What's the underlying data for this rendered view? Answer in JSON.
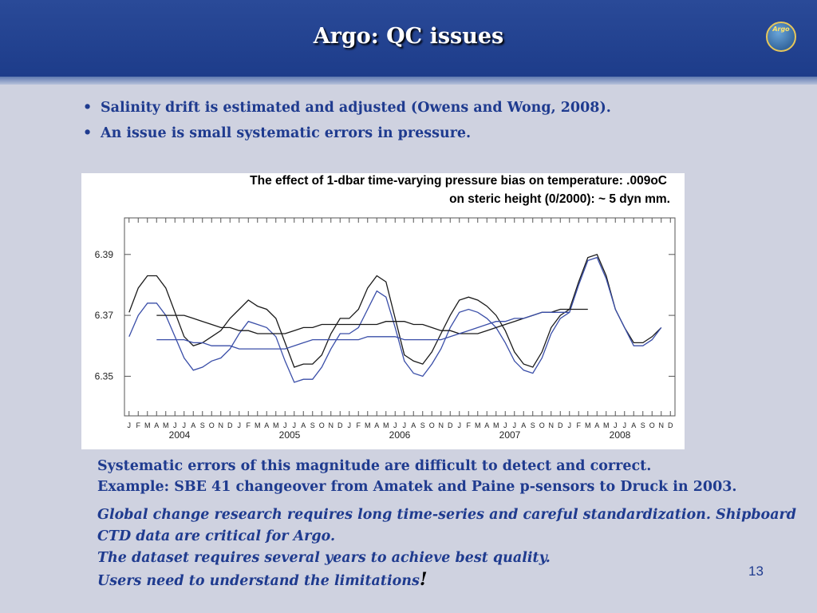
{
  "slide": {
    "title": "Argo: QC issues",
    "logo_text": "Argo",
    "bullets": [
      "Salinity drift is estimated and adjusted (Owens and Wong, 2008).",
      "An issue is small systematic errors in pressure."
    ],
    "body_lines": [
      "Systematic errors of this magnitude are difficult to detect and correct.",
      "Example: SBE 41 changeover from Amatek and Paine p-sensors to Druck in 2003."
    ],
    "italic_lines": [
      "Global change research requires long time-series and careful standardization. Shipboard",
      "CTD data are critical for Argo.",
      "The dataset requires several years to achieve best quality.",
      "Users need to understand the limitations"
    ],
    "exclamation": "!",
    "page_number": "13"
  },
  "chart_data": {
    "type": "line",
    "title_lines": [
      "The effect of 1-dbar time-varying pressure bias on temperature: .009oC",
      "on steric height (0/2000): ~ 5 dyn mm."
    ],
    "xlabel": "",
    "ylabel": "",
    "ylim": [
      6.337,
      6.402
    ],
    "yticks": [
      6.35,
      6.37,
      6.39
    ],
    "ytick_labels": [
      "6.35",
      "6.37",
      "6.39"
    ],
    "month_labels": [
      "J",
      "F",
      "M",
      "A",
      "M",
      "J",
      "J",
      "A",
      "S",
      "O",
      "N",
      "D"
    ],
    "years": [
      "2004",
      "2005",
      "2006",
      "2007",
      "2008"
    ],
    "x_range": [
      0,
      60
    ],
    "colors": {
      "black": "#1a1a1a",
      "blue": "#3a4ea8"
    },
    "series": [
      {
        "color": "black",
        "values": [
          6.371,
          6.379,
          6.383,
          6.383,
          6.379,
          6.371,
          6.363,
          6.36,
          6.361,
          6.363,
          6.365,
          6.369,
          6.372,
          6.375,
          6.373,
          6.372,
          6.369,
          6.361,
          6.353,
          6.354,
          6.354,
          6.357,
          6.364,
          6.369,
          6.369,
          6.372,
          6.379,
          6.383,
          6.381,
          6.369,
          6.357,
          6.355,
          6.354,
          6.358,
          6.364,
          6.37,
          6.375,
          6.376,
          6.375,
          6.373,
          6.37,
          6.365,
          6.358,
          6.354,
          6.353,
          6.358,
          6.366,
          6.37,
          6.372,
          6.381,
          6.389,
          6.39,
          6.383,
          6.372,
          6.366,
          6.361,
          6.361,
          6.363,
          6.366
        ]
      },
      {
        "color": "blue",
        "values": [
          6.363,
          6.37,
          6.374,
          6.374,
          6.37,
          6.363,
          6.356,
          6.352,
          6.353,
          6.355,
          6.356,
          6.359,
          6.364,
          6.368,
          6.367,
          6.366,
          6.363,
          6.355,
          6.348,
          6.349,
          6.349,
          6.353,
          6.359,
          6.364,
          6.364,
          6.366,
          6.372,
          6.378,
          6.376,
          6.366,
          6.355,
          6.351,
          6.35,
          6.354,
          6.359,
          6.366,
          6.371,
          6.372,
          6.371,
          6.369,
          6.366,
          6.361,
          6.355,
          6.352,
          6.351,
          6.356,
          6.364,
          6.369,
          6.371,
          6.38,
          6.388,
          6.389,
          6.382,
          6.372,
          6.366,
          6.36,
          6.36,
          6.362,
          6.366
        ]
      },
      {
        "color": "black",
        "values": [
          6.37,
          6.37,
          6.37,
          6.37,
          6.369,
          6.368,
          6.367,
          6.366,
          6.366,
          6.365,
          6.365,
          6.364,
          6.364,
          6.364,
          6.364,
          6.365,
          6.366,
          6.366,
          6.367,
          6.367,
          6.367,
          6.367,
          6.367,
          6.367,
          6.367,
          6.368,
          6.368,
          6.368,
          6.367,
          6.367,
          6.366,
          6.365,
          6.365,
          6.364,
          6.364,
          6.364,
          6.365,
          6.366,
          6.367,
          6.368,
          6.369,
          6.37,
          6.371,
          6.371,
          6.372,
          6.372,
          6.372,
          6.372
        ]
      },
      {
        "color": "blue",
        "values": [
          6.362,
          6.362,
          6.362,
          6.362,
          6.361,
          6.361,
          6.36,
          6.36,
          6.36,
          6.359,
          6.359,
          6.359,
          6.359,
          6.359,
          6.359,
          6.36,
          6.361,
          6.362,
          6.362,
          6.362,
          6.362,
          6.362,
          6.362,
          6.363,
          6.363,
          6.363,
          6.363,
          6.362,
          6.362,
          6.362,
          6.362,
          6.362,
          6.363,
          6.364,
          6.365,
          6.366,
          6.367,
          6.368,
          6.368,
          6.369,
          6.369,
          6.37,
          6.371,
          6.371,
          6.371,
          6.371
        ]
      }
    ],
    "series_offsets": [
      0,
      0,
      3,
      3
    ]
  }
}
